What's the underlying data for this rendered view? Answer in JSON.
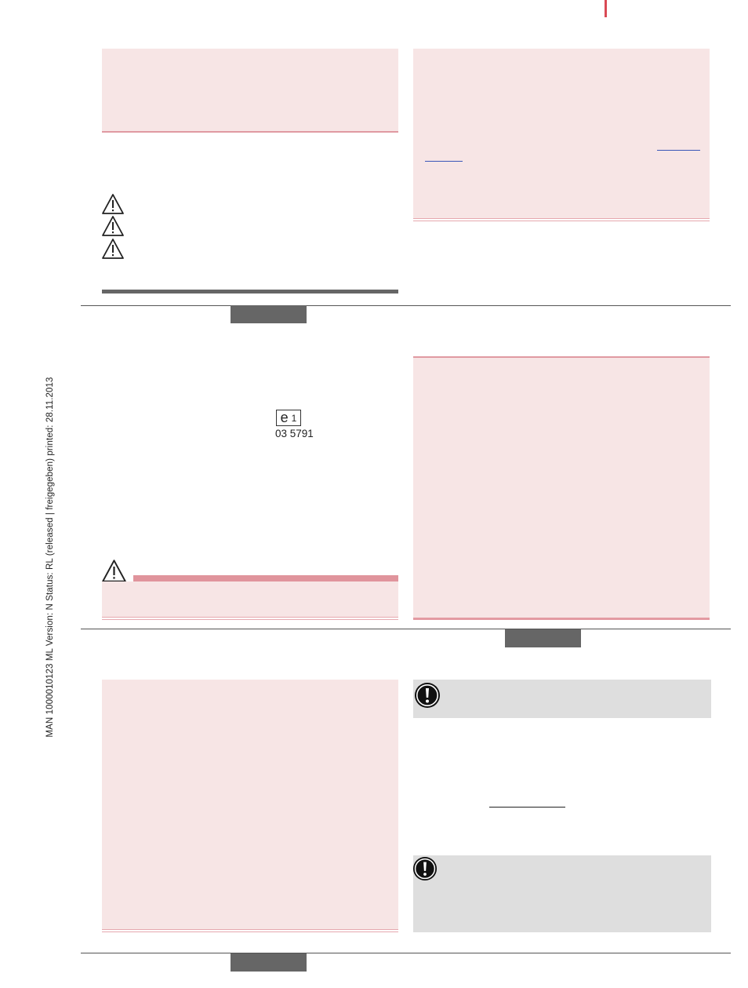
{
  "side_text": "MAN  1000010123  ML  Version: N  Status: RL (released | freigegeben)  printed: 28.11.2013",
  "approval_mark": {
    "letter": "e",
    "number": "1",
    "code": "03 5791"
  },
  "icons": {
    "warning": "warning-triangle-icon",
    "note": "exclamation-circle-icon"
  },
  "colors": {
    "accent_red": "#d94a55",
    "panel_pink": "#f7e5e5",
    "panel_gray": "#dedede",
    "rule_pink": "#e09aa2",
    "tab_gray": "#666666",
    "link_blue": "#3a56b8"
  }
}
